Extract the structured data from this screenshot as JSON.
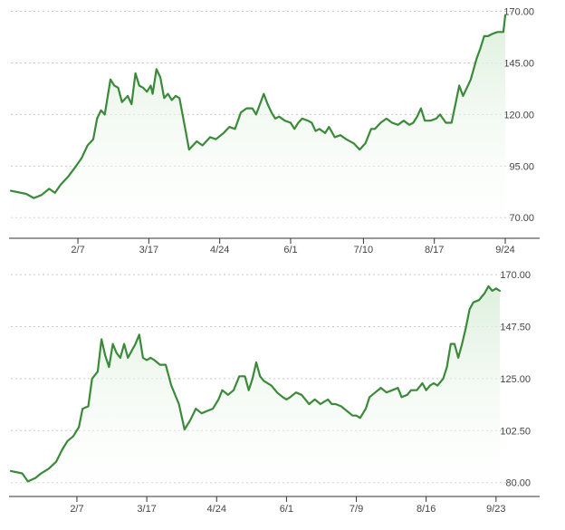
{
  "chart_data": [
    {
      "type": "area",
      "title": "",
      "xlabel": "",
      "ylabel": "",
      "ylim": [
        60,
        172
      ],
      "y_ticks": [
        "170.00",
        "145.00",
        "120.00",
        "95.00",
        "70.00"
      ],
      "y_tick_values": [
        170,
        145,
        120,
        95,
        70
      ],
      "x_ticks": [
        "2/7",
        "3/17",
        "4/24",
        "6/1",
        "7/10",
        "8/17",
        "9/24"
      ],
      "x_tick_index": [
        35,
        72,
        109,
        146,
        184,
        221,
        258
      ],
      "grid": true,
      "y_axis_position": "right",
      "colors": {
        "line": "#3a8a3a",
        "fill_top": "#d9eed9",
        "fill_bottom": "#ffffff"
      },
      "series": [
        {
          "points": [
            [
              0,
              83
            ],
            [
              8,
              81.5
            ],
            [
              12,
              79.5
            ],
            [
              16,
              81
            ],
            [
              20,
              84
            ],
            [
              23,
              82
            ],
            [
              26,
              86
            ],
            [
              30,
              90
            ],
            [
              34,
              95
            ],
            [
              37,
              99
            ],
            [
              40,
              105
            ],
            [
              43,
              108
            ],
            [
              45,
              118
            ],
            [
              47,
              122
            ],
            [
              49,
              120
            ],
            [
              52,
              137
            ],
            [
              54,
              134
            ],
            [
              56,
              133
            ],
            [
              58,
              126
            ],
            [
              61,
              129
            ],
            [
              63,
              125
            ],
            [
              65,
              140
            ],
            [
              67,
              134
            ],
            [
              69,
              133
            ],
            [
              71,
              131
            ],
            [
              73,
              134
            ],
            [
              74,
              130
            ],
            [
              76,
              142
            ],
            [
              78,
              138
            ],
            [
              80,
              128
            ],
            [
              82,
              130
            ],
            [
              84,
              127
            ],
            [
              86,
              129
            ],
            [
              88,
              128
            ],
            [
              91,
              113
            ],
            [
              93,
              103
            ],
            [
              97,
              107
            ],
            [
              100,
              105
            ],
            [
              104,
              109
            ],
            [
              107,
              108
            ],
            [
              111,
              111
            ],
            [
              114,
              114
            ],
            [
              117,
              113
            ],
            [
              120,
              121
            ],
            [
              123,
              123
            ],
            [
              126,
              123
            ],
            [
              128,
              120
            ],
            [
              130,
              125
            ],
            [
              132,
              130
            ],
            [
              134,
              125
            ],
            [
              136,
              121
            ],
            [
              138,
              118
            ],
            [
              140,
              119
            ],
            [
              143,
              117
            ],
            [
              146,
              116
            ],
            [
              148,
              113
            ],
            [
              150,
              116
            ],
            [
              152,
              118
            ],
            [
              155,
              117
            ],
            [
              157,
              116
            ],
            [
              159,
              112
            ],
            [
              161,
              113
            ],
            [
              164,
              111
            ],
            [
              166,
              114
            ],
            [
              169,
              109
            ],
            [
              172,
              110
            ],
            [
              175,
              108
            ],
            [
              179,
              106
            ],
            [
              182,
              103
            ],
            [
              185,
              106
            ],
            [
              188,
              113
            ],
            [
              190,
              113
            ],
            [
              193,
              116
            ],
            [
              196,
              118
            ],
            [
              199,
              116
            ],
            [
              202,
              115
            ],
            [
              205,
              117
            ],
            [
              208,
              115
            ],
            [
              210,
              116
            ],
            [
              212,
              119
            ],
            [
              214,
              123
            ],
            [
              216,
              117
            ],
            [
              219,
              117
            ],
            [
              222,
              118
            ],
            [
              224,
              120
            ],
            [
              227,
              116
            ],
            [
              230,
              116
            ],
            [
              232,
              125
            ],
            [
              234,
              134
            ],
            [
              236,
              129
            ],
            [
              238,
              133
            ],
            [
              240,
              137
            ],
            [
              243,
              147
            ],
            [
              245,
              152
            ],
            [
              247,
              158
            ],
            [
              249,
              158
            ],
            [
              251,
              159
            ],
            [
              254,
              160
            ],
            [
              257,
              160
            ],
            [
              258,
              168
            ]
          ]
        }
      ]
    },
    {
      "type": "area",
      "title": "",
      "xlabel": "",
      "ylabel": "",
      "ylim": [
        74,
        172
      ],
      "y_ticks": [
        "170.00",
        "147.50",
        "125.00",
        "102.50",
        "80.00"
      ],
      "y_tick_values": [
        170,
        147.5,
        125,
        102.5,
        80
      ],
      "x_ticks": [
        "2/7",
        "3/17",
        "4/24",
        "6/1",
        "7/9",
        "8/16",
        "9/23"
      ],
      "x_tick_index": [
        35,
        72,
        109,
        146,
        183,
        220,
        257
      ],
      "grid": true,
      "y_axis_position": "right",
      "colors": {
        "line": "#3a8a3a",
        "fill_top": "#d9eed9",
        "fill_bottom": "#ffffff"
      },
      "series": [
        {
          "points": [
            [
              0,
              85
            ],
            [
              6,
              84
            ],
            [
              9,
              80.5
            ],
            [
              13,
              82
            ],
            [
              16,
              84
            ],
            [
              20,
              86
            ],
            [
              24,
              89
            ],
            [
              27,
              94
            ],
            [
              30,
              98
            ],
            [
              33,
              100
            ],
            [
              36,
              104
            ],
            [
              38,
              112
            ],
            [
              41,
              113
            ],
            [
              43,
              125
            ],
            [
              46,
              128
            ],
            [
              48,
              142
            ],
            [
              50,
              135
            ],
            [
              52,
              130
            ],
            [
              54,
              140
            ],
            [
              56,
              136
            ],
            [
              58,
              134
            ],
            [
              60,
              140
            ],
            [
              62,
              134
            ],
            [
              64,
              137
            ],
            [
              66,
              140
            ],
            [
              68,
              144
            ],
            [
              70,
              134
            ],
            [
              72,
              133
            ],
            [
              74,
              134
            ],
            [
              76,
              133
            ],
            [
              79,
              131
            ],
            [
              82,
              131
            ],
            [
              85,
              122
            ],
            [
              89,
              114
            ],
            [
              92,
              103
            ],
            [
              95,
              107
            ],
            [
              98,
              112
            ],
            [
              101,
              110
            ],
            [
              104,
              111
            ],
            [
              107,
              112
            ],
            [
              110,
              116
            ],
            [
              112,
              120
            ],
            [
              115,
              118
            ],
            [
              118,
              120
            ],
            [
              121,
              126
            ],
            [
              124,
              126
            ],
            [
              126,
              120
            ],
            [
              128,
              125
            ],
            [
              130,
              132
            ],
            [
              132,
              126
            ],
            [
              134,
              124
            ],
            [
              138,
              122
            ],
            [
              141,
              119
            ],
            [
              144,
              117
            ],
            [
              146,
              116
            ],
            [
              148,
              117
            ],
            [
              151,
              119
            ],
            [
              154,
              118
            ],
            [
              156,
              116
            ],
            [
              158,
              114
            ],
            [
              161,
              116
            ],
            [
              164,
              114
            ],
            [
              166,
              115
            ],
            [
              168,
              116
            ],
            [
              170,
              114
            ],
            [
              172,
              114
            ],
            [
              175,
              113
            ],
            [
              178,
              111
            ],
            [
              181,
              109
            ],
            [
              183,
              109
            ],
            [
              185,
              108
            ],
            [
              188,
              112
            ],
            [
              190,
              117
            ],
            [
              193,
              119
            ],
            [
              196,
              121
            ],
            [
              199,
              119
            ],
            [
              202,
              120
            ],
            [
              205,
              121
            ],
            [
              207,
              117
            ],
            [
              210,
              118
            ],
            [
              212,
              120
            ],
            [
              215,
              120
            ],
            [
              218,
              123
            ],
            [
              220,
              120
            ],
            [
              222,
              122
            ],
            [
              224,
              123
            ],
            [
              226,
              122
            ],
            [
              229,
              125
            ],
            [
              231,
              130
            ],
            [
              233,
              140
            ],
            [
              235,
              140
            ],
            [
              237,
              134
            ],
            [
              239,
              140
            ],
            [
              241,
              147
            ],
            [
              243,
              155
            ],
            [
              245,
              158
            ],
            [
              248,
              159
            ],
            [
              251,
              162
            ],
            [
              253,
              165
            ],
            [
              255,
              163
            ],
            [
              257,
              164
            ],
            [
              259,
              163
            ]
          ]
        }
      ]
    }
  ]
}
